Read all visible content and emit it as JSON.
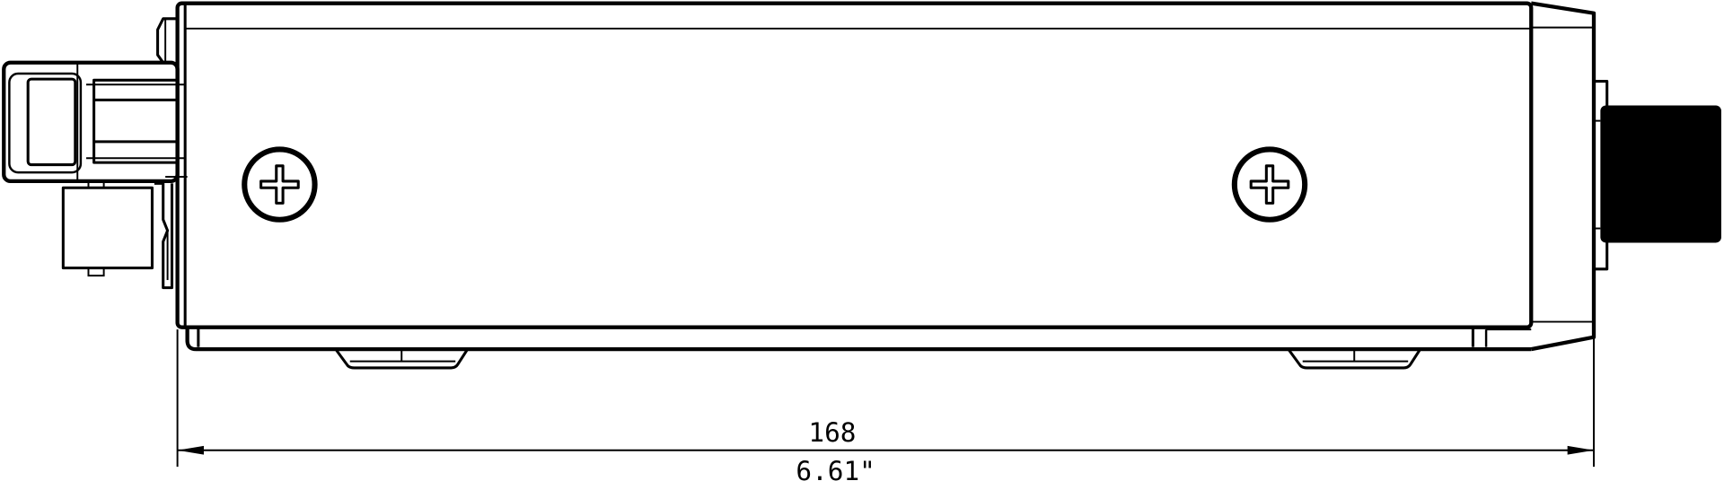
{
  "drawing": {
    "dimension_mm": "168",
    "dimension_in": "6.61\"",
    "line_color": "#000000",
    "background": "#ffffff"
  }
}
